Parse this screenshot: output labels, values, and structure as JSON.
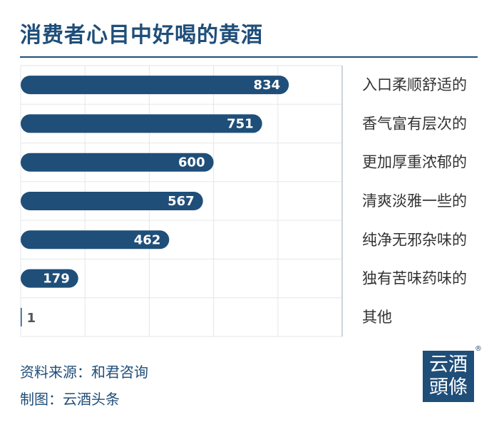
{
  "chart_data": {
    "type": "bar",
    "orientation": "horizontal",
    "title": "消费者心目中好喝的黄酒",
    "categories": [
      "入口柔顺舒适的",
      "香气富有层次的",
      "更加厚重浓郁的",
      "清爽淡雅一些的",
      "纯净无邪杂味的",
      "独有苦味药味的",
      "其他"
    ],
    "values": [
      834,
      751,
      600,
      567,
      462,
      179,
      1
    ],
    "xlim": [
      0,
      1000
    ],
    "grid": true,
    "bar_color": "#1f4e79"
  },
  "footer": {
    "source": "资料来源：和君咨询",
    "maker": "制图：云酒头条"
  },
  "logo": {
    "line1": "云酒",
    "line2": "頭條",
    "mark": "®"
  }
}
